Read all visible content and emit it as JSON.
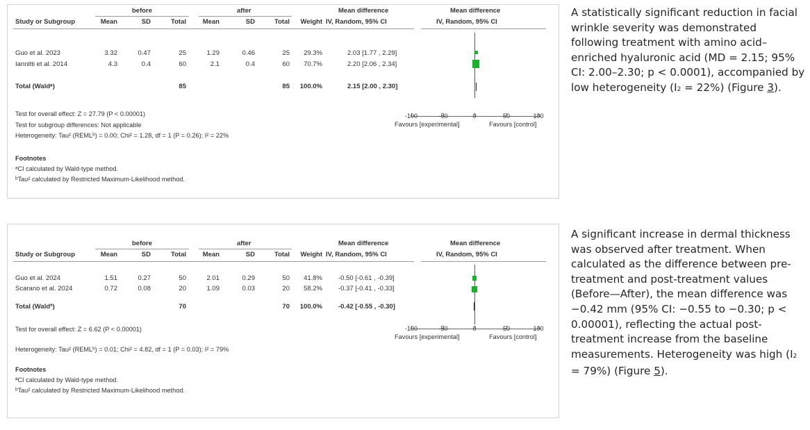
{
  "forest_plots": [
    {
      "header": {
        "before": "before",
        "after": "after",
        "study": "Study or Subgroup",
        "mean": "Mean",
        "sd": "SD",
        "total": "Total",
        "weight": "Weight",
        "md_title": "Mean difference",
        "md_sub": "IV, Random, 95% CI",
        "plot_title": "Mean difference",
        "plot_sub": "IV, Random, 95% CI"
      },
      "rows": [
        {
          "study": "Guo et al. 2023",
          "mean1": "3.32",
          "sd1": "0.47",
          "n1": "25",
          "mean2": "1.29",
          "sd2": "0.46",
          "n2": "25",
          "weight": "29.3%",
          "ci": "2.03 [1.77 , 2.29]"
        },
        {
          "study": "Iannitti et al. 2014",
          "mean1": "4.3",
          "sd1": "0.4",
          "n1": "60",
          "mean2": "2.1",
          "sd2": "0.4",
          "n2": "60",
          "weight": "70.7%",
          "ci": "2.20 [2.06 , 2.34]"
        }
      ],
      "total": {
        "label": "Total (Waldᵃ)",
        "n1": "85",
        "n2": "85",
        "weight": "100.0%",
        "ci": "2.15 [2.00 , 2.30]"
      },
      "tests": [
        "Test for overall effect: Z = 27.79 (P < 0.00001)",
        "Test for subgroup differences: Not applicable",
        "Heterogeneity: Tau² (REMLᵇ) = 0.00; Chi² = 1.28, df = 1 (P = 0.26); I² = 22%"
      ],
      "axis": {
        "ticks": [
          "-100",
          "-50",
          "0",
          "50",
          "100"
        ],
        "left": "Favours [experimental]",
        "right": "Favours [control]"
      },
      "footnotes": {
        "title": "Footnotes",
        "lines": [
          "ᵃCI calculated by Wald-type method.",
          "ᵇTau² calculated by Restricted Maximum-Likelihood method."
        ]
      }
    },
    {
      "header": {
        "before": "before",
        "after": "after",
        "study": "Study or Subgroup",
        "mean": "Mean",
        "sd": "SD",
        "total": "Total",
        "weight": "Weight",
        "md_title": "Mean difference",
        "md_sub": "IV, Random, 95% CI",
        "plot_title": "Mean difference",
        "plot_sub": "IV, Random, 95% CI"
      },
      "rows": [
        {
          "study": "Guo et al. 2024",
          "mean1": "1.51",
          "sd1": "0.27",
          "n1": "50",
          "mean2": "2.01",
          "sd2": "0.29",
          "n2": "50",
          "weight": "41.8%",
          "ci": "-0.50 [-0.61 , -0.39]"
        },
        {
          "study": "Scarano et al. 2024",
          "mean1": "0.72",
          "sd1": "0.08",
          "n1": "20",
          "mean2": "1.09",
          "sd2": "0.03",
          "n2": "20",
          "weight": "58.2%",
          "ci": "-0.37 [-0.41 , -0.33]"
        }
      ],
      "total": {
        "label": "Total (Waldª)",
        "n1": "70",
        "n2": "70",
        "weight": "100.0%",
        "ci": "-0.42 [-0.55 , -0.30]"
      },
      "tests": [
        "Test for overall effect: Z = 6.62 (P < 0.00001)",
        "Heterogeneity: Tau² (REMLᵇ) = 0.01; Chi² = 4.82, df = 1 (P = 0.03); I² = 79%"
      ],
      "axis": {
        "ticks": [
          "-100",
          "-50",
          "0",
          "50",
          "100"
        ],
        "left": "Favours [experimental]",
        "right": "Favours [control]"
      },
      "footnotes": {
        "title": "Footnotes",
        "lines": [
          "ªCI calculated by Wald-type method.",
          "ᵇTau² calculated by Restricted Maximum-Likelihood method."
        ]
      }
    }
  ],
  "caption1": {
    "text": "A statistically significant reduction in facial wrinkle severity was demonstrated following treatment with amino acid–enriched hyaluronic acid (MD = 2.15; 95% CI: 2.00–2.30; p < 0.0001), accompanied by low heterogeneity (I",
    "sub": "2",
    "after": " = 22%) (Figure ",
    "link": "3",
    "end": ")."
  },
  "caption2": {
    "text": "A significant increase in dermal thickness was observed after treatment. When calculated as the difference between pre-treatment and post-treatment values (Before—After), the mean difference was −0.42 mm (95% CI: −0.55 to −0.30; p < 0.00001), reflecting the actual post-treatment increase from the baseline measurements. Heterogeneity was high (I",
    "sub": "2",
    "after": " = 79%) (Figure ",
    "link": "5",
    "end": ")."
  }
}
